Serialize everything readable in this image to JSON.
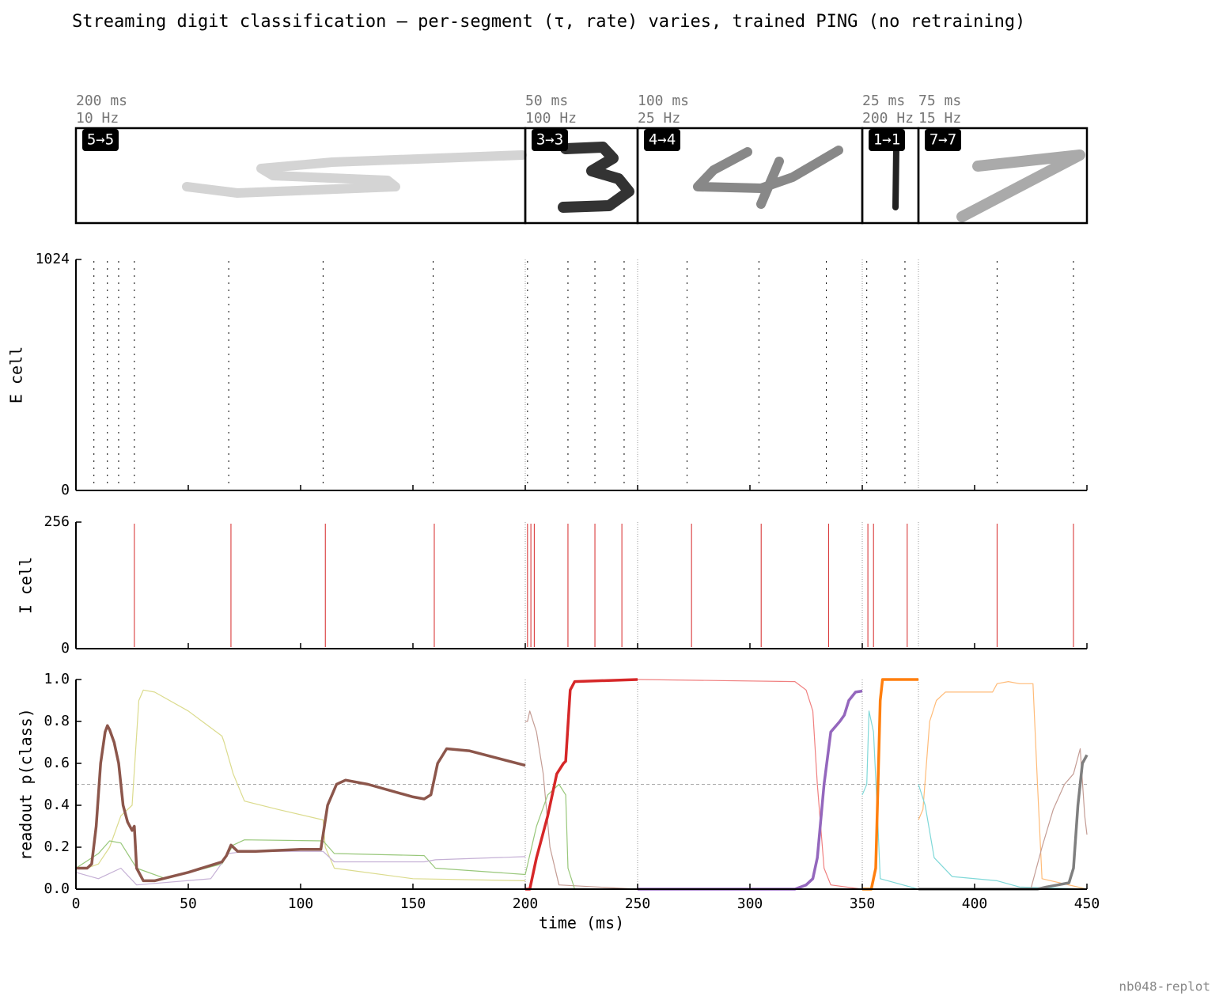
{
  "title": "Streaming digit classification — per-segment (τ, rate) varies, trained PING (no retraining)",
  "footer": "nb048-replot",
  "chart_data": [
    {
      "type": "segments",
      "segments": [
        {
          "tau": {
            "value": 200,
            "label": "200 ms"
          },
          "rate": "10 Hz",
          "badge": "5→5"
        },
        {
          "tau": {
            "value": 50,
            "label": "50 ms"
          },
          "rate": "100 Hz",
          "badge": "3→3"
        },
        {
          "tau": {
            "value": 100,
            "label": "100 ms"
          },
          "rate": "25 Hz",
          "badge": "4→4"
        },
        {
          "tau": {
            "value": 25,
            "label": "25 ms"
          },
          "rate": "200 Hz",
          "badge": "1→1"
        },
        {
          "tau": {
            "value": 75,
            "label": "75 ms"
          },
          "rate": "15 Hz",
          "badge": "7→7"
        }
      ],
      "xlim": [
        0,
        450
      ]
    },
    {
      "type": "raster",
      "ylabel": "E cell",
      "color": "#000000",
      "x": [
        8,
        14,
        19,
        26,
        68,
        110,
        159,
        201,
        219,
        231,
        244,
        272,
        304,
        334,
        352,
        369,
        410,
        444
      ],
      "xlim": [
        0,
        450
      ],
      "xticks": [
        0,
        50,
        100,
        150,
        200,
        250,
        300,
        350,
        400,
        450
      ],
      "ylim": [
        0,
        1024
      ],
      "yticks": [
        0,
        1024
      ]
    },
    {
      "type": "raster",
      "ylabel": "I cell",
      "color": "#d62728",
      "x": [
        26,
        69,
        111,
        159.5,
        201,
        202.5,
        204,
        219,
        231,
        243,
        274,
        305,
        335,
        352.5,
        355,
        370,
        410,
        444
      ],
      "xlim": [
        0,
        450
      ],
      "xticks": [
        0,
        50,
        100,
        150,
        200,
        250,
        300,
        350,
        400,
        450
      ],
      "ylim": [
        0,
        256
      ],
      "yticks": [
        0,
        256
      ]
    },
    {
      "type": "line",
      "ylabel": "readout p(class)",
      "xlabel": "time (ms)",
      "xlim": [
        0,
        450
      ],
      "xticks": [
        0,
        50,
        100,
        150,
        200,
        250,
        300,
        350,
        400,
        450
      ],
      "ylim": [
        0,
        1
      ],
      "yticks": [
        {
          "value": 0,
          "label": "0.0"
        },
        {
          "value": 0.2,
          "label": "0.2"
        },
        {
          "value": 0.4,
          "label": "0.4"
        },
        {
          "value": 0.6,
          "label": "0.6"
        },
        {
          "value": 0.8,
          "label": "0.8"
        },
        {
          "value": 1,
          "label": "1.0"
        }
      ],
      "threshold": 0.5,
      "series": [
        {
          "color": "#dbdb8d",
          "linewidth": 1.2,
          "x": [
            0,
            5,
            10,
            15,
            20,
            25,
            28,
            30,
            35,
            50,
            65,
            66,
            70,
            75,
            90,
            110,
            111,
            115,
            150,
            200
          ],
          "values": [
            0.1,
            0.1,
            0.12,
            0.2,
            0.35,
            0.4,
            0.9,
            0.95,
            0.94,
            0.85,
            0.73,
            0.7,
            0.55,
            0.42,
            0.38,
            0.33,
            0.2,
            0.1,
            0.05,
            0.04
          ]
        },
        {
          "color": "#98c77a",
          "linewidth": 1.2,
          "x": [
            0,
            10,
            15,
            20,
            27,
            40,
            65,
            70,
            75,
            110,
            115,
            155,
            160,
            200
          ],
          "values": [
            0.1,
            0.17,
            0.23,
            0.22,
            0.1,
            0.05,
            0.12,
            0.21,
            0.235,
            0.23,
            0.17,
            0.16,
            0.1,
            0.07
          ]
        },
        {
          "color": "#c5b0d5",
          "linewidth": 1.2,
          "x": [
            0,
            10,
            20,
            27,
            60,
            68,
            75,
            110,
            115,
            155,
            160,
            200
          ],
          "values": [
            0.08,
            0.05,
            0.1,
            0.02,
            0.05,
            0.17,
            0.18,
            0.18,
            0.13,
            0.13,
            0.14,
            0.155
          ]
        },
        {
          "color": "#8c564b",
          "linewidth": 3.5,
          "x": [
            0,
            5,
            7,
            9,
            11,
            13,
            14,
            15,
            17,
            19,
            21,
            23,
            25,
            26,
            27,
            30,
            35,
            50,
            65,
            67,
            69,
            72,
            80,
            100,
            109,
            112,
            116,
            120,
            130,
            150,
            155,
            158,
            161,
            165,
            175,
            200
          ],
          "values": [
            0.1,
            0.1,
            0.12,
            0.3,
            0.6,
            0.75,
            0.78,
            0.76,
            0.7,
            0.6,
            0.4,
            0.32,
            0.28,
            0.3,
            0.1,
            0.04,
            0.04,
            0.08,
            0.13,
            0.16,
            0.21,
            0.18,
            0.18,
            0.19,
            0.19,
            0.4,
            0.5,
            0.52,
            0.5,
            0.44,
            0.43,
            0.45,
            0.6,
            0.67,
            0.66,
            0.59
          ]
        },
        {
          "color": "#c49c94",
          "linewidth": 1.2,
          "x": [
            200,
            201,
            202,
            205,
            208,
            211,
            215,
            250
          ],
          "values": [
            0.8,
            0.8,
            0.85,
            0.75,
            0.55,
            0.2,
            0.02,
            0
          ]
        },
        {
          "color": "#98c77a",
          "linewidth": 1.2,
          "x": [
            200,
            205,
            210,
            215,
            218,
            219,
            222,
            250
          ],
          "values": [
            0.07,
            0.3,
            0.45,
            0.5,
            0.45,
            0.1,
            0,
            0
          ]
        },
        {
          "color": "#d62728",
          "linewidth": 3.5,
          "x": [
            200,
            202,
            205,
            210,
            214,
            217,
            218,
            220,
            222,
            250
          ],
          "values": [
            0,
            0,
            0.15,
            0.35,
            0.55,
            0.6,
            0.61,
            0.95,
            0.99,
            1
          ]
        },
        {
          "color": "#f08080",
          "linewidth": 1.2,
          "x": [
            250,
            320,
            325,
            328,
            330,
            333,
            336,
            350
          ],
          "values": [
            1,
            0.99,
            0.95,
            0.85,
            0.5,
            0.1,
            0.02,
            0
          ]
        },
        {
          "color": "#9467bd",
          "linewidth": 3.5,
          "x": [
            250,
            320,
            325,
            328,
            330,
            333,
            336,
            340,
            342,
            344,
            347,
            350
          ],
          "values": [
            0,
            0,
            0.02,
            0.05,
            0.15,
            0.5,
            0.75,
            0.8,
            0.83,
            0.9,
            0.94,
            0.945
          ]
        },
        {
          "color": "#7fd8d8",
          "linewidth": 1.2,
          "x": [
            350,
            352,
            353,
            355,
            357,
            358,
            375
          ],
          "values": [
            0.45,
            0.5,
            0.85,
            0.75,
            0.3,
            0.05,
            0
          ]
        },
        {
          "color": "#ff7f0e",
          "linewidth": 3.5,
          "x": [
            350,
            354,
            356,
            357,
            358,
            359,
            375
          ],
          "values": [
            0,
            0,
            0.1,
            0.5,
            0.9,
            1,
            1
          ]
        },
        {
          "color": "#ffbb78",
          "linewidth": 1.2,
          "x": [
            375,
            377,
            380,
            383,
            387,
            408,
            410,
            415,
            420,
            426,
            428,
            430,
            450
          ],
          "values": [
            0.33,
            0.38,
            0.8,
            0.9,
            0.94,
            0.94,
            0.98,
            0.99,
            0.98,
            0.98,
            0.5,
            0.05,
            0
          ]
        },
        {
          "color": "#7fd8d8",
          "linewidth": 1.2,
          "x": [
            375,
            378,
            382,
            390,
            410,
            420,
            450
          ],
          "values": [
            0.5,
            0.4,
            0.15,
            0.06,
            0.04,
            0.01,
            0
          ]
        },
        {
          "color": "#c49c94",
          "linewidth": 1.2,
          "x": [
            375,
            425,
            430,
            435,
            440,
            444,
            447,
            449,
            450
          ],
          "values": [
            0,
            0,
            0.2,
            0.38,
            0.5,
            0.55,
            0.67,
            0.35,
            0.26
          ]
        },
        {
          "color": "#7f7f7f",
          "linewidth": 3.5,
          "x": [
            375,
            428,
            432,
            437,
            442,
            444,
            446,
            448,
            450
          ],
          "values": [
            0,
            0,
            0.01,
            0.02,
            0.03,
            0.1,
            0.4,
            0.6,
            0.64
          ]
        }
      ]
    }
  ]
}
